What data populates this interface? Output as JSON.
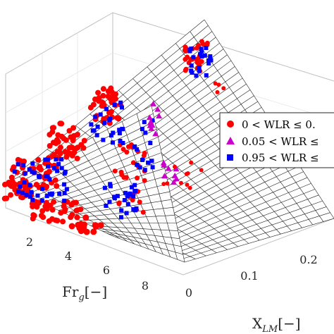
{
  "chart_data": {
    "type": "scatter",
    "view": "3d-surface-with-scatter",
    "axes": {
      "x": {
        "label_main": "Fr",
        "label_sub": "g",
        "label_unit": "[−]",
        "ticks": [
          "2",
          "4",
          "6",
          "8"
        ],
        "tick_values": [
          2,
          4,
          6,
          8
        ],
        "range": [
          0,
          9
        ]
      },
      "y": {
        "label_main": "X",
        "label_sub": "LM",
        "label_unit": "[−]",
        "ticks": [
          "0",
          "0.1",
          "0.2"
        ],
        "tick_values": [
          0,
          0.1,
          0.2
        ],
        "range": [
          0,
          0.27
        ]
      }
    },
    "grid": true,
    "surface": "mesh",
    "legend": {
      "placement": "right",
      "entries": [
        {
          "label": "0 < WLR ≤ 0.",
          "marker": "circle",
          "color": "#ff0000"
        },
        {
          "label": "0.05 < WLR ≤",
          "marker": "triangle",
          "color": "#cc00cc"
        },
        {
          "label": "0.95 < WLR ≤",
          "marker": "square",
          "color": "#0000ff"
        }
      ]
    },
    "colors": {
      "red": "#ff0000",
      "magenta": "#cc00cc",
      "blue": "#0000ff",
      "mesh": "#1a1a1a",
      "surface": "#ffffff"
    }
  }
}
